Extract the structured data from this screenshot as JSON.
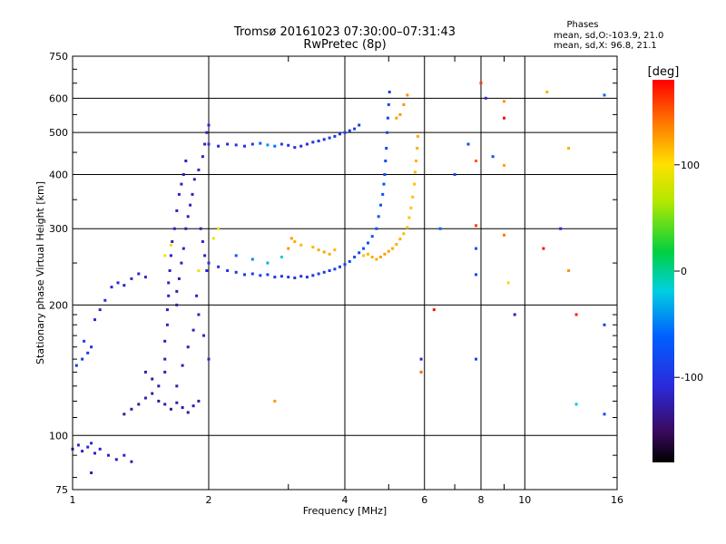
{
  "chart_data": {
    "type": "scatter",
    "title": "Tromsø 20161023 07:30:00–07:31:43",
    "subtitle": "RwPretec (8p)",
    "xlabel": "Frequency [MHz]",
    "ylabel": "Stationary phase Virtual Height [km]",
    "x_scale": "log",
    "y_scale": "log",
    "xlim": [
      1,
      16
    ],
    "ylim": [
      75,
      750
    ],
    "x_ticks": [
      1,
      2,
      4,
      6,
      8,
      10,
      16
    ],
    "y_ticks": [
      75,
      100,
      200,
      300,
      400,
      500,
      600,
      750
    ],
    "grid": true,
    "stats": {
      "heading": "Phases",
      "line1": "mean, sd,O:-103.9, 21.0",
      "line2": "mean, sd,X:  96.8, 21.1"
    },
    "colorbar": {
      "label": "[deg]",
      "range": [
        -180,
        180
      ],
      "ticks": [
        100,
        0,
        -100
      ]
    },
    "series": [
      {
        "points": [
          [
            1.0,
            93,
            -115
          ],
          [
            1.03,
            95,
            -112
          ],
          [
            1.05,
            92,
            -118
          ],
          [
            1.08,
            94,
            -110
          ],
          [
            1.1,
            96,
            -114
          ],
          [
            1.12,
            91,
            -120
          ],
          [
            1.15,
            93,
            -116
          ],
          [
            1.2,
            90,
            -118
          ],
          [
            1.25,
            88,
            -122
          ],
          [
            1.3,
            90,
            -117
          ],
          [
            1.35,
            87,
            -119
          ],
          [
            1.1,
            82,
            -125
          ],
          [
            1.02,
            145,
            -98
          ],
          [
            1.05,
            150,
            -102
          ],
          [
            1.08,
            155,
            -96
          ],
          [
            1.1,
            160,
            -100
          ],
          [
            1.06,
            165,
            -94
          ],
          [
            1.12,
            185,
            -108
          ],
          [
            1.15,
            195,
            -112
          ],
          [
            1.18,
            205,
            -104
          ],
          [
            1.22,
            220,
            -110
          ],
          [
            1.26,
            225,
            -115
          ],
          [
            1.3,
            222,
            -118
          ],
          [
            1.35,
            230,
            -112
          ],
          [
            1.4,
            236,
            -116
          ],
          [
            1.45,
            232,
            -114
          ],
          [
            1.3,
            112,
            -128
          ],
          [
            1.35,
            115,
            -125
          ],
          [
            1.4,
            118,
            -130
          ],
          [
            1.45,
            122,
            -126
          ],
          [
            1.5,
            125,
            -128
          ],
          [
            1.55,
            120,
            -132
          ],
          [
            1.6,
            118,
            -127
          ],
          [
            1.65,
            115,
            -130
          ],
          [
            1.7,
            119,
            -126
          ],
          [
            1.75,
            116,
            -129
          ],
          [
            1.8,
            113,
            -131
          ],
          [
            1.85,
            117,
            -127
          ],
          [
            1.9,
            120,
            -125
          ],
          [
            1.45,
            140,
            -128
          ],
          [
            1.5,
            135,
            -130
          ],
          [
            1.55,
            130,
            -126
          ],
          [
            1.6,
            140,
            -124
          ],
          [
            1.6,
            150,
            -122
          ],
          [
            1.6,
            165,
            -120
          ],
          [
            1.62,
            180,
            -118
          ],
          [
            1.62,
            195,
            -120
          ],
          [
            1.63,
            210,
            -116
          ],
          [
            1.63,
            225,
            -118
          ],
          [
            1.64,
            240,
            -115
          ],
          [
            1.65,
            260,
            -117
          ],
          [
            1.66,
            280,
            -119
          ],
          [
            1.68,
            300,
            -116
          ],
          [
            1.7,
            330,
            -120
          ],
          [
            1.72,
            360,
            -118
          ],
          [
            1.74,
            380,
            -117
          ],
          [
            1.76,
            400,
            -119
          ],
          [
            1.78,
            430,
            -116
          ],
          [
            1.7,
            200,
            -124
          ],
          [
            1.7,
            215,
            -121
          ],
          [
            1.72,
            230,
            -123
          ],
          [
            1.74,
            250,
            -120
          ],
          [
            1.76,
            270,
            -122
          ],
          [
            1.78,
            300,
            -119
          ],
          [
            1.8,
            320,
            -121
          ],
          [
            1.82,
            340,
            -118
          ],
          [
            1.84,
            360,
            -120
          ],
          [
            1.86,
            390,
            -117
          ],
          [
            1.9,
            410,
            -116
          ],
          [
            1.94,
            440,
            -118
          ],
          [
            1.96,
            470,
            -115
          ],
          [
            1.98,
            500,
            -117
          ],
          [
            2.0,
            520,
            -114
          ],
          [
            1.92,
            300,
            -118
          ],
          [
            1.94,
            280,
            -116
          ],
          [
            1.96,
            260,
            -118
          ],
          [
            1.98,
            240,
            -114
          ],
          [
            1.88,
            210,
            -115
          ],
          [
            1.9,
            190,
            -118
          ],
          [
            1.95,
            170,
            -112
          ],
          [
            2.0,
            150,
            -116
          ],
          [
            1.85,
            175,
            -120
          ],
          [
            1.8,
            160,
            -122
          ],
          [
            1.75,
            145,
            -124
          ],
          [
            1.7,
            130,
            -126
          ],
          [
            2.0,
            470,
            -108
          ],
          [
            2.1,
            465,
            -106
          ],
          [
            2.2,
            470,
            -110
          ],
          [
            2.3,
            468,
            -104
          ],
          [
            2.4,
            465,
            -106
          ],
          [
            2.5,
            470,
            -95
          ],
          [
            2.6,
            472,
            -65
          ],
          [
            2.7,
            468,
            -40
          ],
          [
            2.8,
            465,
            -55
          ],
          [
            2.9,
            470,
            -88
          ],
          [
            3.0,
            467,
            -100
          ],
          [
            3.1,
            462,
            -104
          ],
          [
            3.2,
            465,
            -108
          ],
          [
            3.3,
            470,
            -105
          ],
          [
            3.4,
            475,
            -102
          ],
          [
            3.5,
            478,
            -100
          ],
          [
            3.6,
            482,
            -98
          ],
          [
            3.7,
            486,
            -96
          ],
          [
            3.8,
            490,
            -94
          ],
          [
            3.9,
            496,
            -92
          ],
          [
            4.0,
            500,
            -90
          ],
          [
            4.1,
            505,
            -94
          ],
          [
            4.2,
            510,
            -96
          ],
          [
            4.3,
            520,
            -98
          ],
          [
            2.0,
            250,
            -100
          ],
          [
            2.1,
            245,
            -102
          ],
          [
            2.2,
            240,
            -98
          ],
          [
            2.3,
            238,
            -95
          ],
          [
            2.4,
            235,
            -90
          ],
          [
            2.5,
            236,
            -88
          ],
          [
            2.6,
            234,
            -85
          ],
          [
            2.7,
            235,
            -92
          ],
          [
            2.8,
            232,
            -96
          ],
          [
            2.9,
            233,
            -98
          ],
          [
            3.0,
            232,
            -100
          ],
          [
            3.1,
            231,
            -102
          ],
          [
            3.2,
            233,
            -104
          ],
          [
            3.3,
            232,
            -101
          ],
          [
            3.4,
            234,
            -98
          ],
          [
            3.5,
            236,
            -96
          ],
          [
            3.6,
            238,
            -94
          ],
          [
            3.7,
            240,
            -92
          ],
          [
            3.8,
            242,
            -90
          ],
          [
            3.9,
            245,
            -88
          ],
          [
            4.0,
            248,
            -86
          ],
          [
            4.1,
            252,
            -84
          ],
          [
            4.2,
            258,
            -82
          ],
          [
            4.3,
            264,
            -80
          ],
          [
            4.4,
            270,
            -78
          ],
          [
            4.5,
            278,
            -76
          ],
          [
            4.6,
            288,
            -74
          ],
          [
            4.7,
            300,
            -72
          ],
          [
            4.75,
            320,
            -70
          ],
          [
            4.8,
            340,
            -72
          ],
          [
            4.85,
            360,
            -74
          ],
          [
            4.88,
            380,
            -76
          ],
          [
            4.9,
            400,
            -78
          ],
          [
            4.92,
            430,
            -80
          ],
          [
            4.94,
            460,
            -82
          ],
          [
            4.96,
            500,
            -84
          ],
          [
            4.98,
            540,
            -86
          ],
          [
            5.0,
            580,
            -88
          ],
          [
            5.02,
            620,
            -90
          ],
          [
            2.3,
            260,
            -65
          ],
          [
            2.5,
            255,
            -45
          ],
          [
            2.7,
            250,
            -30
          ],
          [
            2.9,
            258,
            -20
          ],
          [
            3.0,
            270,
            130
          ],
          [
            3.05,
            285,
            128
          ],
          [
            3.1,
            280,
            120
          ],
          [
            3.2,
            275,
            115
          ],
          [
            3.4,
            272,
            118
          ],
          [
            3.5,
            268,
            122
          ],
          [
            3.6,
            265,
            125
          ],
          [
            3.7,
            262,
            120
          ],
          [
            3.8,
            268,
            116
          ],
          [
            4.4,
            260,
            112
          ],
          [
            4.5,
            262,
            118
          ],
          [
            4.6,
            258,
            120
          ],
          [
            4.7,
            255,
            122
          ],
          [
            4.8,
            258,
            124
          ],
          [
            4.9,
            262,
            126
          ],
          [
            5.0,
            266,
            124
          ],
          [
            5.1,
            270,
            122
          ],
          [
            5.2,
            276,
            120
          ],
          [
            5.3,
            284,
            118
          ],
          [
            5.4,
            292,
            116
          ],
          [
            5.5,
            302,
            114
          ],
          [
            5.55,
            318,
            112
          ],
          [
            5.6,
            335,
            110
          ],
          [
            5.65,
            355,
            112
          ],
          [
            5.7,
            380,
            114
          ],
          [
            5.72,
            405,
            116
          ],
          [
            5.75,
            430,
            118
          ],
          [
            5.78,
            460,
            120
          ],
          [
            5.8,
            490,
            122
          ],
          [
            5.3,
            550,
            128
          ],
          [
            5.4,
            580,
            130
          ],
          [
            5.5,
            610,
            132
          ],
          [
            5.2,
            540,
            126
          ],
          [
            1.6,
            260,
            100
          ],
          [
            1.65,
            275,
            105
          ],
          [
            1.9,
            240,
            95
          ],
          [
            2.05,
            285,
            92
          ],
          [
            2.1,
            300,
            90
          ],
          [
            2.8,
            120,
            130
          ],
          [
            6.3,
            195,
            175
          ],
          [
            5.9,
            140,
            145
          ],
          [
            5.9,
            150,
            -115
          ],
          [
            6.5,
            300,
            -60
          ],
          [
            7.0,
            400,
            -80
          ],
          [
            7.5,
            470,
            -78
          ],
          [
            8.0,
            650,
            160
          ],
          [
            7.8,
            430,
            150
          ],
          [
            7.8,
            305,
            158
          ],
          [
            7.8,
            235,
            -80
          ],
          [
            7.8,
            150,
            -85
          ],
          [
            7.8,
            270,
            -75
          ],
          [
            8.2,
            600,
            -110
          ],
          [
            8.5,
            440,
            -70
          ],
          [
            9.0,
            590,
            130
          ],
          [
            9.0,
            540,
            180
          ],
          [
            9.0,
            420,
            125
          ],
          [
            9.0,
            290,
            140
          ],
          [
            9.2,
            225,
            105
          ],
          [
            9.5,
            190,
            -120
          ],
          [
            11.0,
            270,
            175
          ],
          [
            11.2,
            620,
            120
          ],
          [
            12.0,
            300,
            -110
          ],
          [
            12.5,
            460,
            120
          ],
          [
            12.5,
            240,
            130
          ],
          [
            13.0,
            190,
            170
          ],
          [
            13.0,
            118,
            -20
          ],
          [
            15.0,
            610,
            -60
          ],
          [
            15.0,
            180,
            -90
          ],
          [
            15.0,
            112,
            -80
          ]
        ]
      }
    ]
  }
}
